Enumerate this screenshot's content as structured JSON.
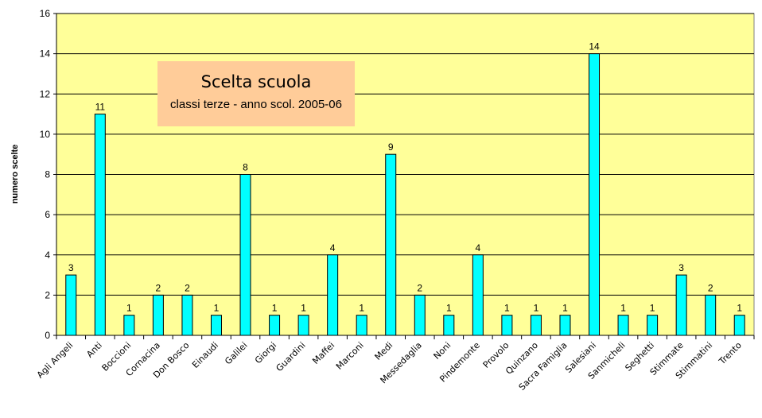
{
  "chart_data": {
    "type": "bar",
    "title": "Scelta scuola",
    "subtitle": "classi terze - anno scol. 2005-06",
    "ylabel": "numero scelte",
    "xlabel": "",
    "ylim": [
      0,
      16
    ],
    "yticks": [
      0,
      2,
      4,
      6,
      8,
      10,
      12,
      14,
      16
    ],
    "grid": true,
    "categories": [
      "Agli Angeli",
      "Anti",
      "Boccioni",
      "Cornacina",
      "Don Bosco",
      "Einaudi",
      "Galilei",
      "Giorgi",
      "Guardini",
      "Maffei",
      "Marconi",
      "Medi",
      "Messedaglia",
      "Noni",
      "Pindemonte",
      "Provolo",
      "Quinzano",
      "Sacra Famiglia",
      "Salesiani",
      "Sanmicheli",
      "Seghetti",
      "Stimmate",
      "Stimmatini",
      "Trento"
    ],
    "values": [
      3,
      11,
      1,
      2,
      2,
      1,
      8,
      1,
      1,
      4,
      1,
      9,
      2,
      1,
      4,
      1,
      1,
      1,
      14,
      1,
      1,
      3,
      2,
      1
    ],
    "colors": {
      "plot_bg": "#ffff99",
      "bar": "#00ffff",
      "title_bg": "#ffcc99"
    }
  }
}
